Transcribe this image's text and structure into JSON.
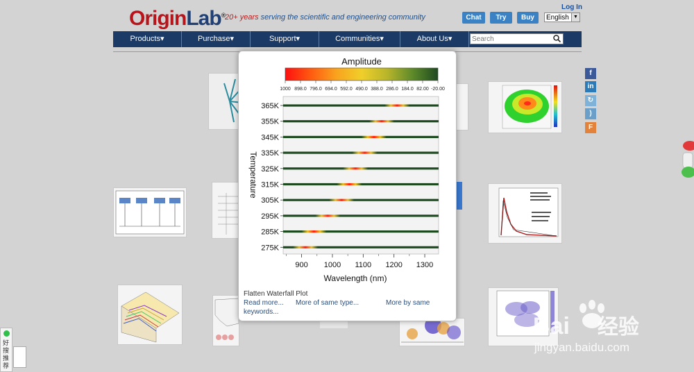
{
  "header": {
    "logo_origin": "Origin",
    "logo_lab": "Lab",
    "logo_reg": "®",
    "tagline_years": "20+ years",
    "tagline_rest": " serving the scientific and engineering community",
    "login": "Log In",
    "chat": "Chat",
    "try": "Try",
    "buy": "Buy",
    "language": "English"
  },
  "nav": {
    "items": [
      "Products▾",
      "Purchase▾",
      "Support▾",
      "Communities▾",
      "About Us▾"
    ],
    "search_placeholder": "Search"
  },
  "popup": {
    "caption": "Flatten Waterfall Plot",
    "read_more": "Read more...",
    "more_same_type": "More of same type...",
    "more_same_keywords_1": "More by same",
    "more_same_keywords_2": "keywords..."
  },
  "left_widget": {
    "label": "好搜推荐"
  },
  "watermark": {
    "brand": "Bai",
    "brand2": "经验",
    "url": "jingyan.baidu.com"
  },
  "colors": {
    "nav_bg": "#1b3b66",
    "button_blue": "#3a82c4",
    "logo_red": "#b8141c"
  },
  "chart_data": {
    "type": "heatmap",
    "title": "Amplitude",
    "xlabel": "Wavelength (nm)",
    "ylabel": "Temperature",
    "x_ticks": [
      900,
      1000,
      1100,
      1200,
      1300
    ],
    "xlim": [
      840,
      1345
    ],
    "y_categories": [
      "275K",
      "285K",
      "295K",
      "305K",
      "315K",
      "325K",
      "335K",
      "345K",
      "355K",
      "365K"
    ],
    "peak_wavelength": [
      912,
      940,
      985,
      1030,
      1055,
      1075,
      1105,
      1135,
      1160,
      1210
    ],
    "colorbar_labels": [
      "1000",
      "898.0",
      "796.0",
      "694.0",
      "592.0",
      "490.0",
      "388.0",
      "286.0",
      "184.0",
      "82.00",
      "-20.00"
    ],
    "colorscale": [
      "#ff1010",
      "#ff5a10",
      "#f9a21e",
      "#f0cf2a",
      "#b8b52a",
      "#5e8a2a",
      "#1d4a1f"
    ]
  }
}
